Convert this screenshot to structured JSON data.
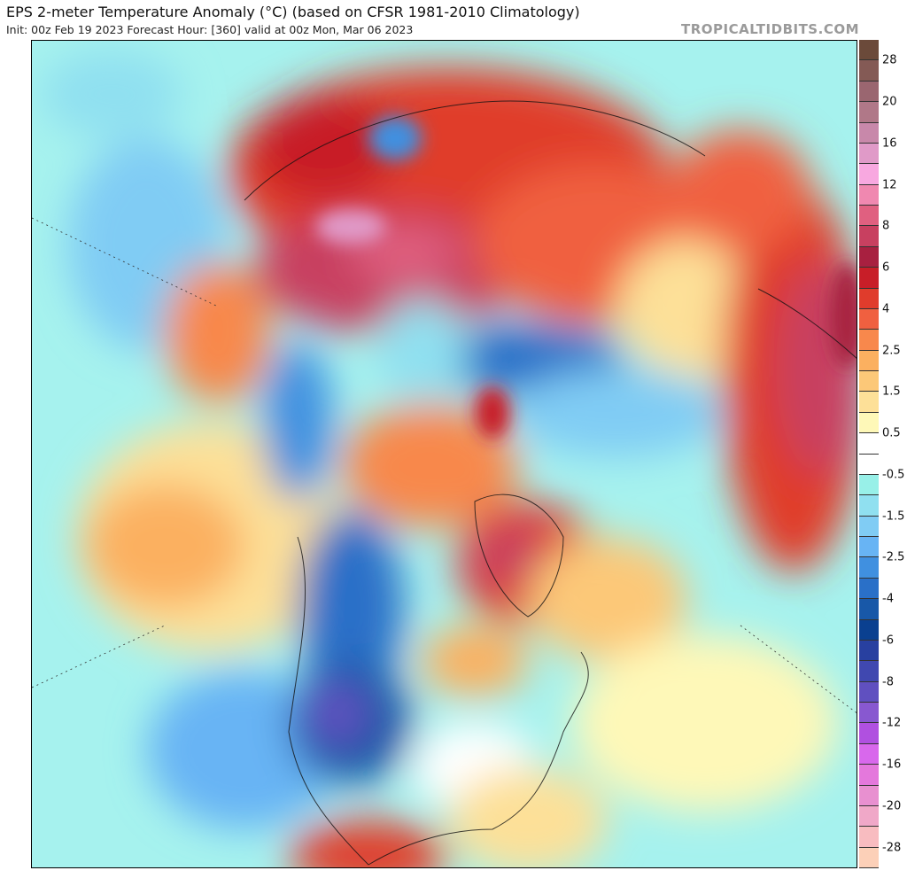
{
  "header": {
    "title": "EPS 2-meter Temperature Anomaly (°C) (based on CFSR 1981-2010 Climatology)",
    "subtitle": "Init: 00z Feb 19 2023   Forecast Hour: [360]   valid at 00z Mon, Mar 06 2023",
    "watermark": "TROPICALTIDBITS.COM"
  },
  "map": {
    "projection": "polar-stereographic",
    "variable": "2-meter temperature anomaly"
  },
  "colorbar": {
    "colors": [
      "#6b4a3a",
      "#845a55",
      "#9a6670",
      "#b07888",
      "#c888aa",
      "#e09ac8",
      "#f8a8e0",
      "#f088b0",
      "#e06080",
      "#c84060",
      "#a82040",
      "#c81e28",
      "#e03c2c",
      "#f06040",
      "#f8884c",
      "#fbb060",
      "#fcc878",
      "#fde098",
      "#fef8b8",
      "#ffffff",
      "#ffffff",
      "#98f0e8",
      "#90e0f0",
      "#80ccf4",
      "#68b4f4",
      "#4090e0",
      "#2a70c8",
      "#1858a8",
      "#0a4090",
      "#2840a0",
      "#4048b0",
      "#6050c0",
      "#8858d0",
      "#b050e0",
      "#d868ec",
      "#e478dc",
      "#e890d0",
      "#f0a8c8",
      "#f8bcc0",
      "#fcd0b8"
    ],
    "labels": [
      {
        "text": "28",
        "boundary": 1
      },
      {
        "text": "20",
        "boundary": 3
      },
      {
        "text": "16",
        "boundary": 5
      },
      {
        "text": "12",
        "boundary": 7
      },
      {
        "text": "8",
        "boundary": 9
      },
      {
        "text": "6",
        "boundary": 11
      },
      {
        "text": "4",
        "boundary": 13
      },
      {
        "text": "2.5",
        "boundary": 15
      },
      {
        "text": "1.5",
        "boundary": 17
      },
      {
        "text": "0.5",
        "boundary": 19
      },
      {
        "text": "-0.5",
        "boundary": 21
      },
      {
        "text": "-1.5",
        "boundary": 23
      },
      {
        "text": "-2.5",
        "boundary": 25
      },
      {
        "text": "-4",
        "boundary": 27
      },
      {
        "text": "-6",
        "boundary": 29
      },
      {
        "text": "-8",
        "boundary": 31
      },
      {
        "text": "-12",
        "boundary": 33
      },
      {
        "text": "-16",
        "boundary": 35
      },
      {
        "text": "-20",
        "boundary": 37
      },
      {
        "text": "-28",
        "boundary": 39
      }
    ]
  }
}
